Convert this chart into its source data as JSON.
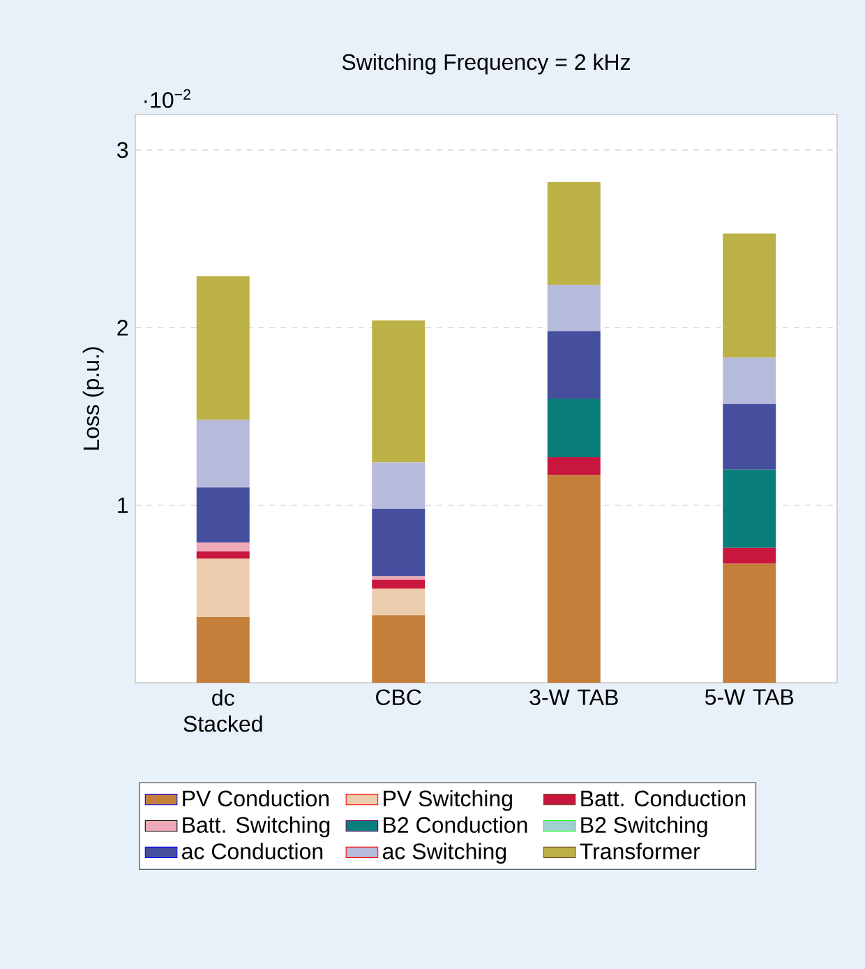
{
  "chart_data": {
    "type": "bar",
    "stacked": true,
    "title": "Switching Frequency = 2 kHz",
    "ylabel": "Loss (p.u.)",
    "annotations": [
      "·10$^{−2}$"
    ],
    "categories": [
      "dc Stacked",
      "CBC",
      "3-W TAB",
      "5-W TAB"
    ],
    "series": [
      {
        "name": "PV Conduction",
        "color": "#c47f3a",
        "values": [
          0.37,
          0.38,
          1.17,
          0.67
        ]
      },
      {
        "name": "PV Switching",
        "color": "#ebcdad",
        "values": [
          0.33,
          0.15,
          0,
          0
        ]
      },
      {
        "name": "Batt. Conduction",
        "color": "#c8163e",
        "values": [
          0.04,
          0.05,
          0.1,
          0.09
        ]
      },
      {
        "name": "Batt. Switching",
        "color": "#eeaab8",
        "values": [
          0.05,
          0.02,
          0,
          0
        ]
      },
      {
        "name": "B2 Conduction",
        "color": "#0a7e7a",
        "values": [
          0,
          0,
          0.33,
          0.44
        ]
      },
      {
        "name": "B2 Switching",
        "color": "#9fd0cd",
        "values": [
          0,
          0,
          0,
          0
        ]
      },
      {
        "name": "ac Conduction",
        "color": "#464f9e",
        "values": [
          0.31,
          0.38,
          0.38,
          0.37
        ]
      },
      {
        "name": "ac Switching",
        "color": "#b6badb",
        "values": [
          0.38,
          0.26,
          0.26,
          0.26
        ]
      },
      {
        "name": "Transformer",
        "color": "#bbb147",
        "values": [
          0.81,
          0.8,
          0.58,
          0.7
        ]
      }
    ],
    "ylim": [
      0,
      3.2
    ],
    "yticks": [
      1,
      2,
      3
    ],
    "grid": "y",
    "legend": "bottom"
  }
}
